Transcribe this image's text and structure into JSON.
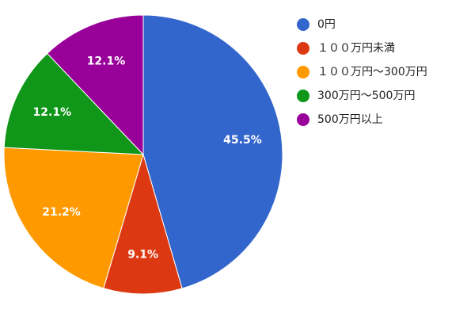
{
  "chart_data": {
    "type": "pie",
    "labels": [
      "0円",
      "１００万円未満",
      "１００万円～300万円",
      "300万円～500万円",
      "500万円以上"
    ],
    "values": [
      45.5,
      9.1,
      21.2,
      12.1,
      12.1
    ],
    "data_labels": [
      "45.5%",
      "9.1%",
      "21.2%",
      "12.1%",
      "12.1%"
    ],
    "colors": [
      "#3366cc",
      "#dc3912",
      "#ff9900",
      "#109618",
      "#990099"
    ],
    "legend_position": "right",
    "start_angle": "12 o'clock, clockwise"
  }
}
